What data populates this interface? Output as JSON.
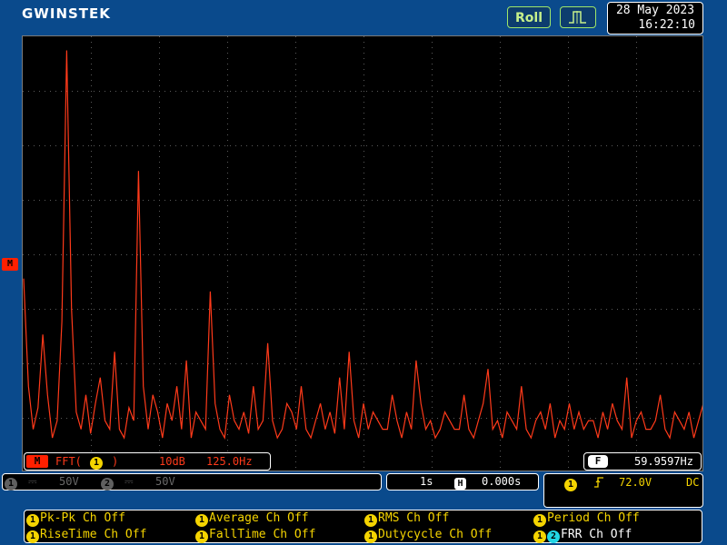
{
  "header": {
    "brand": "GWINSTEK",
    "roll_label": "Roll",
    "trigger_icon": "pulse-trigger-icon",
    "date": "28 May 2023",
    "time": "16:22:10"
  },
  "screen": {
    "marker_label": "M",
    "trace_color": "#ff3a1a",
    "spectrum": {
      "type": "line",
      "series": [
        {
          "values": [
            0.45,
            0.2,
            0.1,
            0.15,
            0.32,
            0.18,
            0.08,
            0.12,
            0.35,
            0.98,
            0.38,
            0.14,
            0.1,
            0.18,
            0.09,
            0.16,
            0.22,
            0.12,
            0.1,
            0.28,
            0.1,
            0.08,
            0.15,
            0.12,
            0.7,
            0.2,
            0.1,
            0.18,
            0.14,
            0.08,
            0.16,
            0.12,
            0.2,
            0.1,
            0.26,
            0.08,
            0.14,
            0.12,
            0.1,
            0.42,
            0.16,
            0.1,
            0.08,
            0.18,
            0.12,
            0.1,
            0.14,
            0.09,
            0.2,
            0.1,
            0.12,
            0.3,
            0.12,
            0.08,
            0.1,
            0.16,
            0.14,
            0.1,
            0.2,
            0.1,
            0.08,
            0.12,
            0.16,
            0.1,
            0.14,
            0.09,
            0.22,
            0.1,
            0.28,
            0.12,
            0.08,
            0.16,
            0.1,
            0.14,
            0.12,
            0.1,
            0.1,
            0.18,
            0.12,
            0.08,
            0.14,
            0.1,
            0.26,
            0.16,
            0.1,
            0.12,
            0.08,
            0.1,
            0.14,
            0.12,
            0.1,
            0.1,
            0.18,
            0.1,
            0.08,
            0.12,
            0.16,
            0.24,
            0.1,
            0.12,
            0.08,
            0.14,
            0.12,
            0.1,
            0.2,
            0.1,
            0.08,
            0.12,
            0.14,
            0.1,
            0.16,
            0.08,
            0.12,
            0.1,
            0.16,
            0.1,
            0.14,
            0.1,
            0.12,
            0.12,
            0.08,
            0.14,
            0.1,
            0.16,
            0.12,
            0.1,
            0.22,
            0.08,
            0.12,
            0.14,
            0.1,
            0.1,
            0.12,
            0.18,
            0.1,
            0.08,
            0.14,
            0.12,
            0.1,
            0.14,
            0.08,
            0.12,
            0.16
          ]
        }
      ]
    }
  },
  "fft_bar": {
    "marker": "M",
    "text_prefix": "FFT(",
    "channel": "1",
    "text_suffix": ")",
    "scale": "10dB",
    "span": "125.0Hz"
  },
  "freq_bar": {
    "tag": "F",
    "value": "59.9597Hz"
  },
  "channels": {
    "ch1_label": "1",
    "ch1_coupling": "⎓",
    "ch1_scale": "50V",
    "ch2_label": "2",
    "ch2_coupling": "⎓",
    "ch2_scale": "50V"
  },
  "timebase": {
    "scale": "1s",
    "h_tag": "H",
    "offset": "0.000s"
  },
  "trigger": {
    "channel": "1",
    "slope": "rising-edge-icon",
    "level": "72.0V",
    "coupling": "DC"
  },
  "measurements": [
    {
      "ch": "1",
      "text": "Pk-Pk Ch Off"
    },
    {
      "ch": "1",
      "text": "Average Ch Off"
    },
    {
      "ch": "1",
      "text": "RMS Ch Off"
    },
    {
      "ch": "1",
      "text": "Period Ch Off"
    },
    {
      "ch": "1",
      "text": "RiseTime Ch Off"
    },
    {
      "ch": "1",
      "text": "FallTime Ch Off"
    },
    {
      "ch": "1",
      "text": "Dutycycle Ch Off"
    },
    {
      "ch": "1",
      "ch2": "2",
      "text": "FRR Ch Off"
    }
  ]
}
